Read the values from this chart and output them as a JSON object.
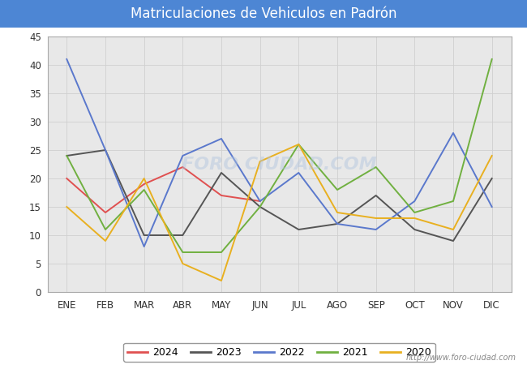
{
  "title": "Matriculaciones de Vehiculos en Padrón",
  "title_bg_color": "#4d86d4",
  "title_text_color": "#ffffff",
  "months": [
    "ENE",
    "FEB",
    "MAR",
    "ABR",
    "MAY",
    "JUN",
    "JUL",
    "AGO",
    "SEP",
    "OCT",
    "NOV",
    "DIC"
  ],
  "series": {
    "2024": {
      "color": "#e05050",
      "values": [
        20,
        14,
        19,
        22,
        17,
        16,
        null,
        null,
        null,
        null,
        null,
        null
      ]
    },
    "2023": {
      "color": "#555555",
      "values": [
        24,
        25,
        10,
        10,
        21,
        15,
        11,
        12,
        17,
        11,
        9,
        20
      ]
    },
    "2022": {
      "color": "#5a78cc",
      "values": [
        41,
        25,
        8,
        24,
        27,
        16,
        21,
        12,
        11,
        16,
        28,
        15
      ]
    },
    "2021": {
      "color": "#70b040",
      "values": [
        24,
        11,
        18,
        7,
        7,
        15,
        26,
        18,
        22,
        14,
        16,
        41
      ]
    },
    "2020": {
      "color": "#e8b020",
      "values": [
        15,
        9,
        20,
        5,
        2,
        23,
        26,
        14,
        13,
        13,
        11,
        24
      ]
    }
  },
  "ylim": [
    0,
    45
  ],
  "yticks": [
    0,
    5,
    10,
    15,
    20,
    25,
    30,
    35,
    40,
    45
  ],
  "grid_color": "#d0d0d0",
  "plot_bg_color": "#e8e8e8",
  "chart_bg_color": "#ffffff",
  "outer_bg_color": "#ffffff",
  "watermark": "FORO CIUDAD.COM",
  "url": "http://www.foro-ciudad.com",
  "legend_order": [
    "2024",
    "2023",
    "2022",
    "2021",
    "2020"
  ]
}
